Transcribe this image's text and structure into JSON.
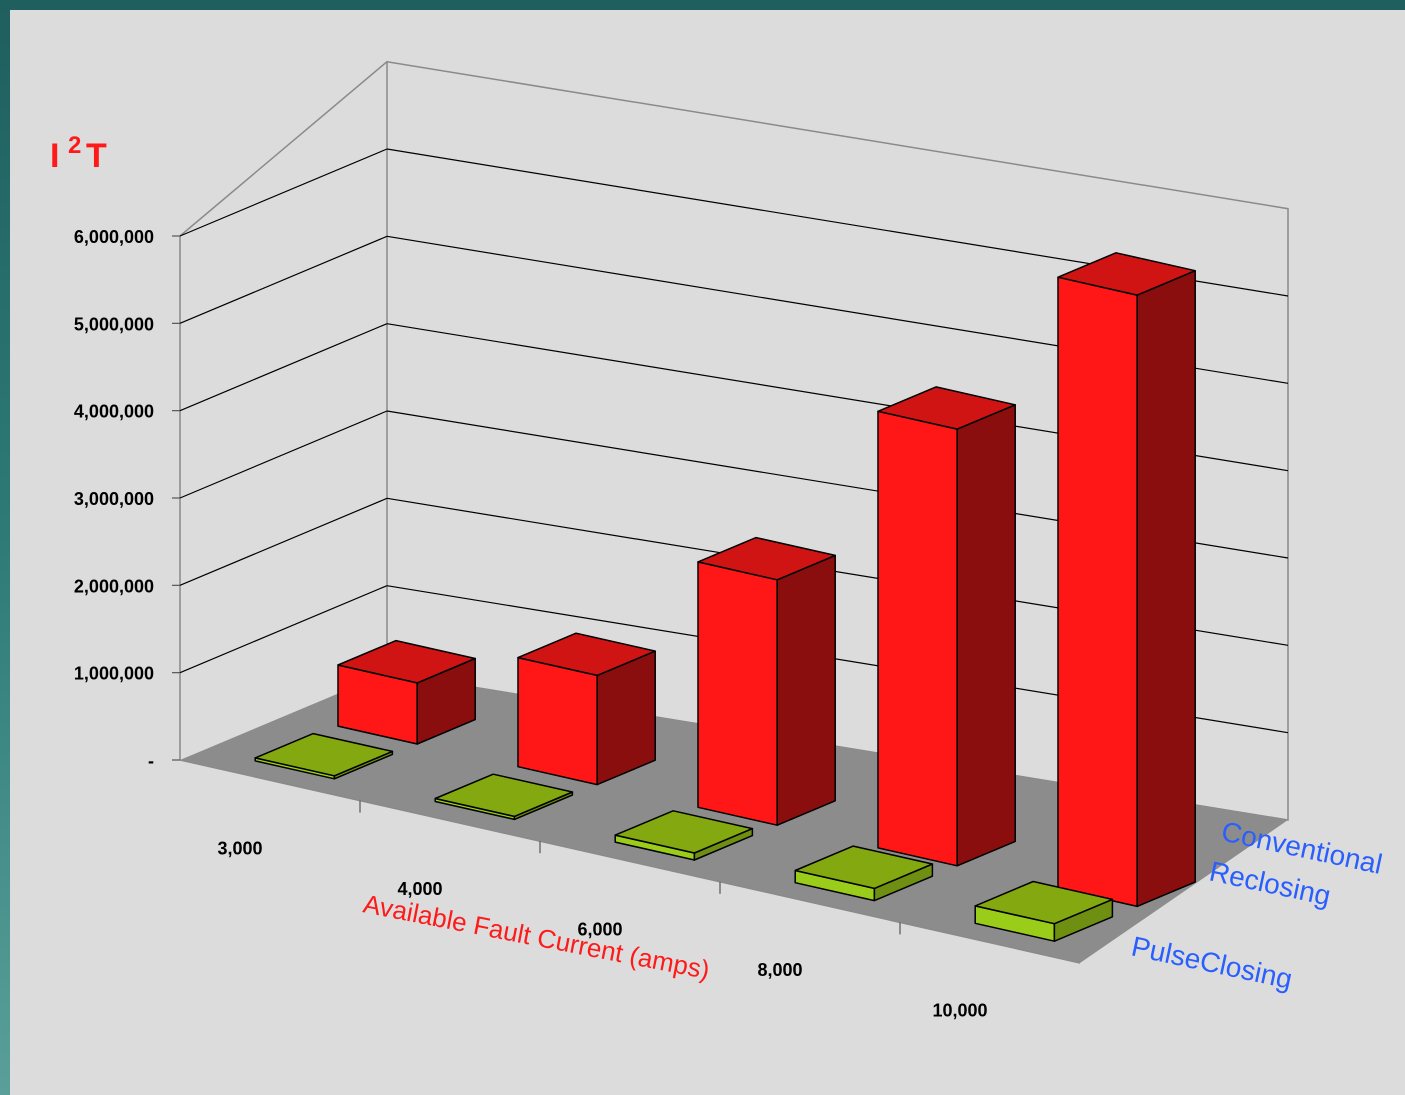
{
  "chart_data": {
    "type": "bar",
    "three_d": true,
    "ylabel": {
      "base": "I",
      "sup": "2",
      "rest": "T"
    },
    "xlabel": "Available Fault Current (amps)",
    "y_ticks": [
      {
        "value": 0,
        "label": "-"
      },
      {
        "value": 1000000,
        "label": "1,000,000"
      },
      {
        "value": 2000000,
        "label": "2,000,000"
      },
      {
        "value": 3000000,
        "label": "3,000,000"
      },
      {
        "value": 4000000,
        "label": "4,000,000"
      },
      {
        "value": 5000000,
        "label": "5,000,000"
      },
      {
        "value": 6000000,
        "label": "6,000,000"
      }
    ],
    "ylim": [
      0,
      7000000
    ],
    "categories": [
      "3,000",
      "4,000",
      "6,000",
      "8,000",
      "10,000"
    ],
    "series": [
      {
        "name": "PulseClosing",
        "values": [
          20000,
          30000,
          80000,
          140000,
          200000
        ],
        "color": "#9acd1a",
        "color_dark": "#6f8f12"
      },
      {
        "name": "Conventional Reclosing",
        "values": [
          700000,
          1250000,
          2810000,
          5000000,
          7000000
        ],
        "color": "#ff1616",
        "color_dark": "#8b0e0e"
      }
    ],
    "series_labels": [
      {
        "lines": [
          "Conventional",
          "Reclosing"
        ]
      },
      {
        "lines": [
          "PulseClosing"
        ]
      }
    ],
    "grid": true,
    "floor_color": "#8c8c8c",
    "background_color": "#dcdcdc"
  }
}
